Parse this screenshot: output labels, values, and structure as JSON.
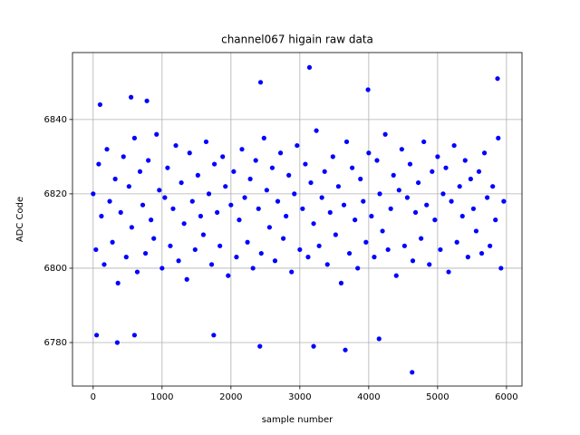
{
  "chart_data": {
    "type": "scatter",
    "title": "channel067 higain raw data",
    "x_label": "sample number",
    "y_label": "ADC Code",
    "grid": true,
    "xlim": [
      -300,
      6225
    ],
    "ylim": [
      6768.3,
      6858.0
    ],
    "xticks": [
      0,
      1000,
      2000,
      3000,
      4000,
      5000,
      6000
    ],
    "yticks": [
      6780,
      6800,
      6820,
      6840
    ],
    "series": [
      {
        "color": "#0000ff",
        "x": [
          0,
          40,
          80,
          120,
          160,
          200,
          240,
          280,
          320,
          360,
          400,
          440,
          480,
          520,
          560,
          600,
          640,
          680,
          720,
          760,
          800,
          840,
          880,
          920,
          960,
          1000,
          1040,
          1080,
          1120,
          1160,
          1200,
          1240,
          1280,
          1320,
          1360,
          1400,
          1440,
          1480,
          1520,
          1560,
          1600,
          1640,
          1680,
          1720,
          1760,
          1800,
          1840,
          1880,
          1920,
          1960,
          2000,
          2040,
          2080,
          2120,
          2160,
          2200,
          2240,
          2280,
          2320,
          2360,
          2400,
          2440,
          2480,
          2520,
          2560,
          2600,
          2640,
          2680,
          2720,
          2760,
          2800,
          2840,
          2880,
          2920,
          2960,
          3000,
          3040,
          3080,
          3120,
          3160,
          3200,
          3240,
          3280,
          3320,
          3360,
          3400,
          3440,
          3480,
          3520,
          3560,
          3600,
          3640,
          3680,
          3720,
          3760,
          3800,
          3840,
          3880,
          3920,
          3960,
          4000,
          4040,
          4080,
          4120,
          4160,
          4200,
          4240,
          4280,
          4320,
          4360,
          4400,
          4440,
          4480,
          4520,
          4560,
          4600,
          4640,
          4680,
          4720,
          4760,
          4800,
          4840,
          4880,
          4920,
          4960,
          5000,
          5040,
          5080,
          5120,
          5160,
          5200,
          5240,
          5280,
          5320,
          5360,
          5400,
          5440,
          5480,
          5520,
          5560,
          5600,
          5640,
          5680,
          5720,
          5760,
          5800,
          5840,
          5880,
          5920,
          5960,
          3140,
          4630,
          2430,
          5870,
          3200,
          2420,
          3660,
          350,
          100,
          550,
          780,
          3990,
          1750,
          4150,
          600,
          50
        ],
        "values": [
          6820,
          6805,
          6828,
          6814,
          6801,
          6832,
          6818,
          6807,
          6824,
          6796,
          6815,
          6830,
          6803,
          6822,
          6811,
          6835,
          6799,
          6826,
          6817,
          6804,
          6829,
          6813,
          6808,
          6836,
          6821,
          6800,
          6819,
          6827,
          6806,
          6816,
          6833,
          6802,
          6823,
          6812,
          6797,
          6831,
          6818,
          6805,
          6825,
          6814,
          6809,
          6834,
          6820,
          6801,
          6828,
          6815,
          6806,
          6830,
          6822,
          6798,
          6817,
          6826,
          6803,
          6813,
          6832,
          6819,
          6807,
          6824,
          6800,
          6829,
          6816,
          6804,
          6835,
          6821,
          6811,
          6827,
          6802,
          6818,
          6831,
          6808,
          6814,
          6825,
          6799,
          6820,
          6833,
          6805,
          6816,
          6828,
          6803,
          6823,
          6812,
          6837,
          6806,
          6819,
          6826,
          6801,
          6815,
          6830,
          6809,
          6822,
          6796,
          6817,
          6834,
          6804,
          6827,
          6813,
          6800,
          6824,
          6818,
          6807,
          6831,
          6814,
          6803,
          6829,
          6820,
          6810,
          6836,
          6805,
          6816,
          6825,
          6798,
          6821,
          6832,
          6806,
          6819,
          6828,
          6802,
          6815,
          6823,
          6808,
          6834,
          6817,
          6801,
          6826,
          6813,
          6830,
          6805,
          6820,
          6827,
          6799,
          6818,
          6833,
          6807,
          6822,
          6814,
          6829,
          6803,
          6824,
          6816,
          6810,
          6826,
          6804,
          6831,
          6819,
          6806,
          6822,
          6813,
          6835,
          6800,
          6818,
          6854,
          6772,
          6850,
          6851,
          6779,
          6779,
          6778,
          6780,
          6844,
          6846,
          6845,
          6848,
          6782,
          6781,
          6782,
          6782
        ]
      }
    ]
  }
}
